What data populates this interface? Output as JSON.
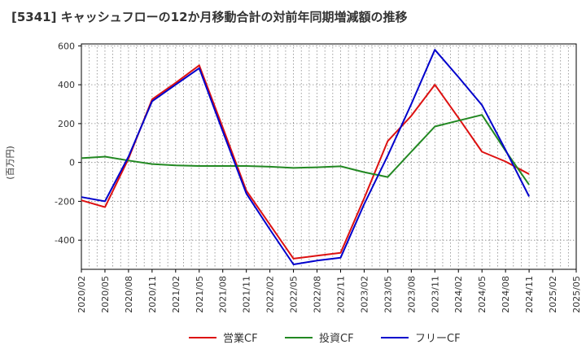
{
  "chart_data": {
    "type": "line",
    "title": "[5341]  キャッシュフローの12か月移動合計の対前年同期増減額の推移",
    "ylabel": "(百万円)",
    "xlabel": "",
    "ylim": [
      -550,
      610
    ],
    "yticks": [
      600,
      400,
      200,
      0,
      -200,
      -400
    ],
    "grid": true,
    "legend_position": "bottom-center",
    "categories": [
      "2020/02",
      "2020/05",
      "2020/08",
      "2020/11",
      "2021/02",
      "2021/05",
      "2021/08",
      "2021/11",
      "2022/02",
      "2022/05",
      "2022/08",
      "2022/11",
      "2023/02",
      "2023/05",
      "2023/08",
      "2023/11",
      "2024/02",
      "2024/05",
      "2024/08",
      "2024/11",
      "2025/02",
      "2025/05"
    ],
    "series": [
      {
        "name": "営業CF",
        "color": "#dd1111",
        "values": [
          -195,
          -230,
          20,
          325,
          410,
          500,
          180,
          -145,
          -320,
          -495,
          -480,
          -465,
          -185,
          110,
          240,
          400,
          230,
          55,
          5,
          -60,
          null,
          null
        ]
      },
      {
        "name": "投資CF",
        "color": "#228822",
        "values": [
          22,
          30,
          10,
          -8,
          -15,
          -18,
          -18,
          -18,
          -22,
          -28,
          -25,
          -20,
          -50,
          -75,
          55,
          185,
          215,
          245,
          60,
          -115,
          null,
          null
        ]
      },
      {
        "name": "フリーCF",
        "color": "#0000cc",
        "values": [
          -178,
          -200,
          30,
          315,
          400,
          485,
          160,
          -160,
          -345,
          -525,
          -505,
          -490,
          -215,
          35,
          300,
          580,
          440,
          295,
          65,
          -175,
          null,
          null
        ]
      }
    ]
  }
}
